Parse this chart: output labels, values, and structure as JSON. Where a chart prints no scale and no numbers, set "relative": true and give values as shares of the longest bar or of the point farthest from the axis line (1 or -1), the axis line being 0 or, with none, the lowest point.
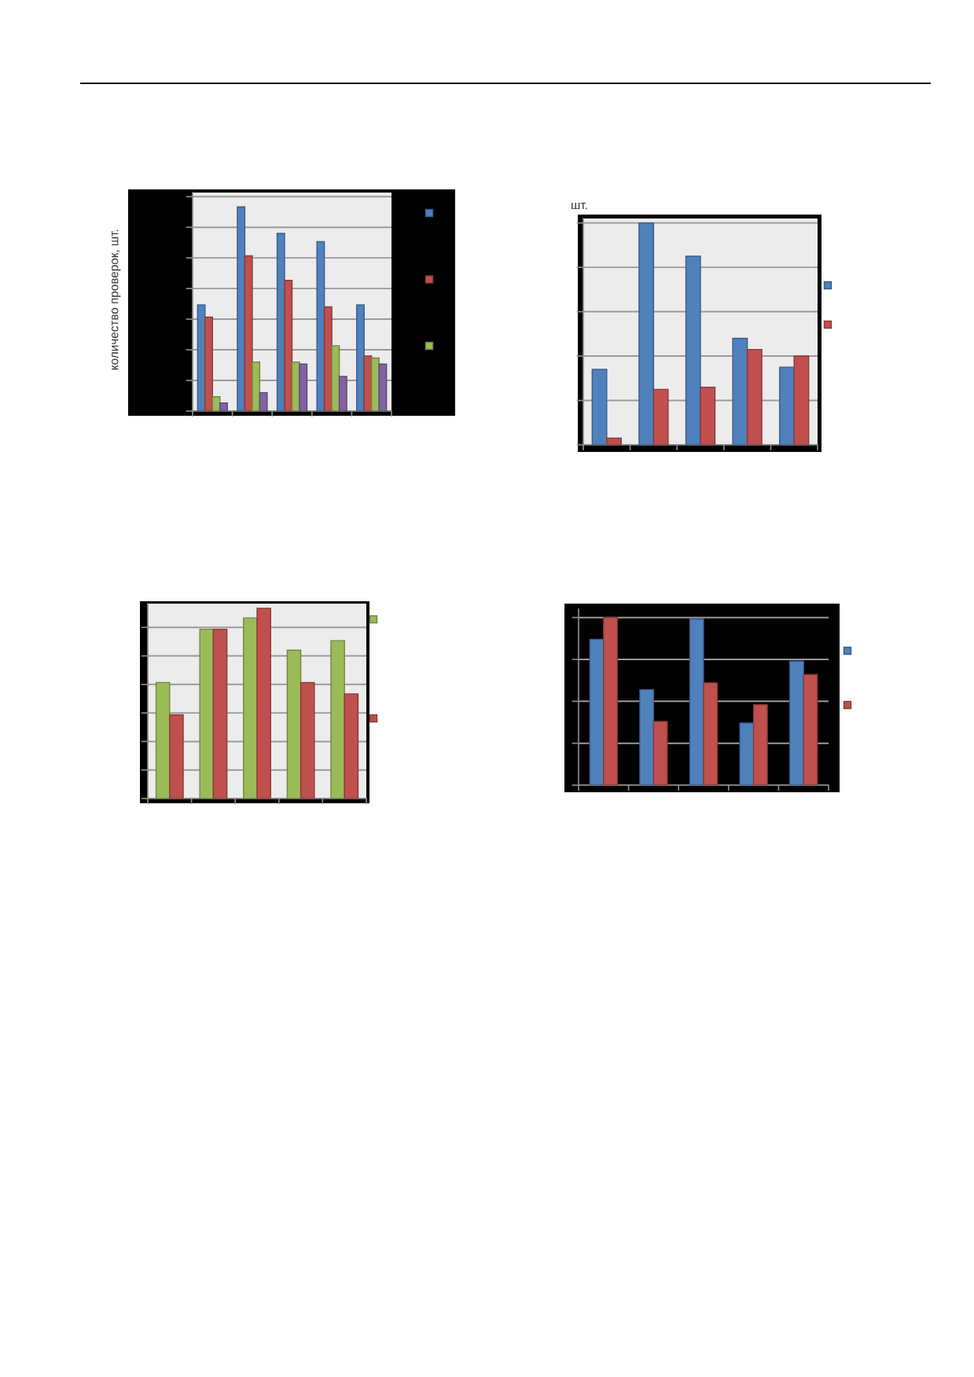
{
  "chart_data": [
    {
      "type": "bar",
      "ylabel": "количество проверок, шт.",
      "categories": [
        null,
        null,
        null,
        null,
        null
      ],
      "relative": true,
      "series": [
        {
          "color": "#4f81bd",
          "values": [
            0.52,
            1,
            0.87,
            0.83,
            0.52
          ]
        },
        {
          "color": "#c0504d",
          "values": [
            0.46,
            0.76,
            0.64,
            0.51,
            0.27
          ]
        },
        {
          "color": "#9bbb59",
          "values": [
            0.07,
            0.24,
            0.24,
            0.32,
            0.26
          ]
        },
        {
          "color": "#8064a2",
          "values": [
            0.04,
            0.09,
            0.23,
            0.17,
            0.23
          ]
        }
      ],
      "grid": "y"
    },
    {
      "type": "bar",
      "ylabel": "шт.",
      "categories": [
        null,
        null,
        null,
        null,
        null
      ],
      "relative": true,
      "series": [
        {
          "color": "#4f81bd",
          "values": [
            0.34,
            1,
            0.85,
            0.48,
            0.35
          ]
        },
        {
          "color": "#c0504d",
          "values": [
            0.03,
            0.25,
            0.26,
            0.43,
            0.4
          ]
        }
      ],
      "grid": "y"
    },
    {
      "type": "bar",
      "categories": [
        null,
        null,
        null,
        null,
        null
      ],
      "relative": true,
      "series": [
        {
          "color": "#9bbb59",
          "values": [
            0.61,
            0.89,
            0.95,
            0.78,
            0.83
          ]
        },
        {
          "color": "#c0504d",
          "values": [
            0.44,
            0.89,
            1,
            0.61,
            0.55
          ]
        }
      ],
      "grid": "y"
    },
    {
      "type": "bar",
      "categories": [
        null,
        null,
        null,
        null,
        null
      ],
      "relative": true,
      "series": [
        {
          "color": "#4f81bd",
          "values": [
            0.87,
            0.57,
            0.99,
            0.37,
            0.74
          ]
        },
        {
          "color": "#c0504d",
          "values": [
            1,
            0.38,
            0.61,
            0.48,
            0.66
          ]
        }
      ],
      "grid": "y"
    }
  ]
}
